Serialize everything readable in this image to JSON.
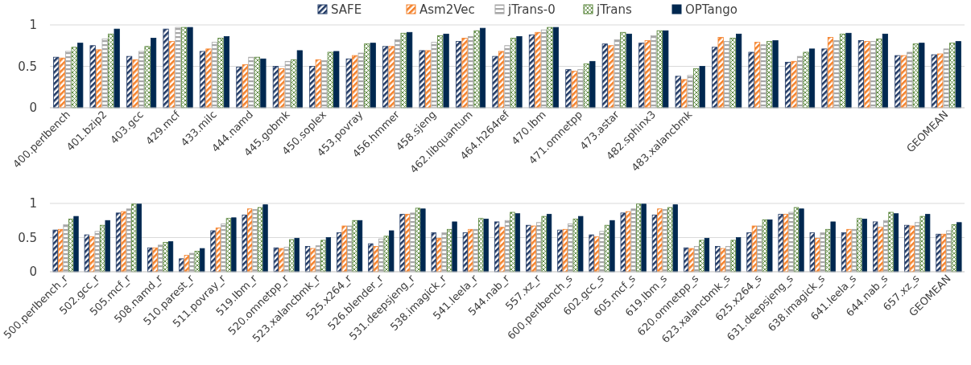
{
  "chart_data": [
    {
      "type": "bar",
      "categories": [
        "400.perlbench",
        "401.bzip2",
        "403.gcc",
        "429.mcf",
        "433.milc",
        "444.namd",
        "445.gobmk",
        "450.soplex",
        "453.povray",
        "456.hmmer",
        "458.sjeng",
        "462.libquantum",
        "464.h264ref",
        "470.lbm",
        "471.omnetpp",
        "473.astar",
        "482.sphinx3",
        "483.xalancbmk",
        null,
        null,
        null,
        null,
        null,
        null,
        "GEOMEAN"
      ],
      "series": [
        {
          "name": "SAFE",
          "color": "#1f3864",
          "values": [
            0.61,
            0.75,
            0.62,
            0.95,
            0.68,
            0.49,
            0.5,
            0.5,
            0.59,
            0.74,
            0.69,
            0.8,
            0.62,
            0.88,
            0.46,
            0.77,
            0.78,
            0.38,
            0.73,
            0.67,
            0.55,
            0.71,
            0.81,
            0.63,
            0.64
          ]
        },
        {
          "name": "Asm2Vec",
          "color": "#f4812a",
          "values": [
            0.6,
            0.7,
            0.58,
            0.8,
            0.71,
            0.52,
            0.47,
            0.58,
            0.63,
            0.74,
            0.69,
            0.84,
            0.68,
            0.91,
            0.44,
            0.75,
            0.81,
            0.34,
            0.85,
            0.79,
            0.56,
            0.85,
            0.8,
            0.63,
            0.65
          ]
        },
        {
          "name": "jTrans-0",
          "color": "#a6a6a6",
          "values": [
            0.68,
            0.83,
            0.68,
            0.97,
            0.79,
            0.61,
            0.56,
            0.57,
            0.66,
            0.82,
            0.79,
            0.86,
            0.75,
            0.94,
            0.46,
            0.82,
            0.87,
            0.39,
            0.8,
            0.76,
            0.62,
            0.81,
            0.8,
            0.67,
            0.71
          ]
        },
        {
          "name": "jTrans",
          "color": "#548235",
          "values": [
            0.73,
            0.89,
            0.74,
            0.97,
            0.84,
            0.61,
            0.58,
            0.67,
            0.77,
            0.9,
            0.87,
            0.93,
            0.84,
            0.97,
            0.53,
            0.91,
            0.93,
            0.47,
            0.84,
            0.8,
            0.67,
            0.89,
            0.83,
            0.77,
            0.78
          ]
        },
        {
          "name": "OPTango",
          "color": "#002850",
          "values": [
            0.78,
            0.95,
            0.84,
            0.97,
            0.86,
            0.59,
            0.69,
            0.68,
            0.78,
            0.91,
            0.89,
            0.96,
            0.86,
            0.97,
            0.56,
            0.89,
            0.93,
            0.5,
            0.89,
            0.81,
            0.71,
            0.9,
            0.89,
            0.78,
            0.8
          ]
        }
      ],
      "ylim": [
        0,
        1
      ],
      "yticks": [
        0,
        0.5,
        1
      ],
      "grid": "y",
      "legend": "top"
    },
    {
      "type": "bar",
      "categories": [
        "500.perlbench_r",
        "502.gcc_r",
        "505.mcf_r",
        "508.namd_r",
        "510.parest_r",
        "511.povray_r",
        "519.lbm_r",
        "520.omnetpp_r",
        "523.xalancbmk_r",
        "525.x264_r",
        "526.blender_r",
        "531.deepsjeng_r",
        "538.imagick_r",
        "541.leela_r",
        "544.nab_r",
        "557.xz_r",
        "600.perlbench_s",
        "602.gcc_s",
        "605.mcf_s",
        "619.lbm_s",
        "620.omnetpp_s",
        "623.xalancbmk_s",
        "625.x264_s",
        "631.deepsjeng_s",
        "638.imagick_s",
        "641.leela_s",
        "644.nab_s",
        "657.xz_s",
        "GEOMEAN"
      ],
      "series": [
        {
          "name": "SAFE",
          "color": "#1f3864",
          "values": [
            0.61,
            0.54,
            0.86,
            0.35,
            0.19,
            0.6,
            0.83,
            0.35,
            0.37,
            0.57,
            0.41,
            0.84,
            0.57,
            0.57,
            0.73,
            0.68,
            0.61,
            0.54,
            0.86,
            0.83,
            0.35,
            0.37,
            0.57,
            0.84,
            0.57,
            0.57,
            0.73,
            0.68,
            0.55
          ]
        },
        {
          "name": "Asm2Vec",
          "color": "#f4812a",
          "values": [
            0.62,
            0.51,
            0.88,
            0.35,
            0.24,
            0.64,
            0.92,
            0.34,
            0.34,
            0.67,
            0.37,
            0.84,
            0.49,
            0.62,
            0.65,
            0.67,
            0.62,
            0.51,
            0.88,
            0.92,
            0.34,
            0.34,
            0.67,
            0.84,
            0.49,
            0.62,
            0.65,
            0.67,
            0.55
          ]
        },
        {
          "name": "jTrans-0",
          "color": "#a6a6a6",
          "values": [
            0.69,
            0.59,
            0.92,
            0.39,
            0.27,
            0.7,
            0.91,
            0.36,
            0.38,
            0.67,
            0.48,
            0.86,
            0.57,
            0.62,
            0.75,
            0.72,
            0.7,
            0.59,
            0.92,
            0.91,
            0.37,
            0.37,
            0.67,
            0.87,
            0.57,
            0.62,
            0.75,
            0.72,
            0.6
          ]
        },
        {
          "name": "jTrans",
          "color": "#548235",
          "values": [
            0.77,
            0.68,
            0.99,
            0.43,
            0.3,
            0.78,
            0.94,
            0.47,
            0.46,
            0.75,
            0.52,
            0.93,
            0.62,
            0.78,
            0.87,
            0.81,
            0.77,
            0.68,
            0.99,
            0.94,
            0.46,
            0.46,
            0.76,
            0.94,
            0.62,
            0.78,
            0.87,
            0.81,
            0.69
          ]
        },
        {
          "name": "OPTango",
          "color": "#002850",
          "values": [
            0.81,
            0.75,
            0.99,
            0.44,
            0.34,
            0.79,
            0.98,
            0.49,
            0.5,
            0.75,
            0.6,
            0.92,
            0.73,
            0.77,
            0.85,
            0.84,
            0.81,
            0.75,
            0.99,
            0.98,
            0.49,
            0.5,
            0.76,
            0.92,
            0.73,
            0.77,
            0.85,
            0.84,
            0.72
          ]
        }
      ],
      "ylim": [
        0,
        1
      ],
      "yticks": [
        0,
        0.5,
        1
      ],
      "grid": "y",
      "legend": false
    }
  ]
}
